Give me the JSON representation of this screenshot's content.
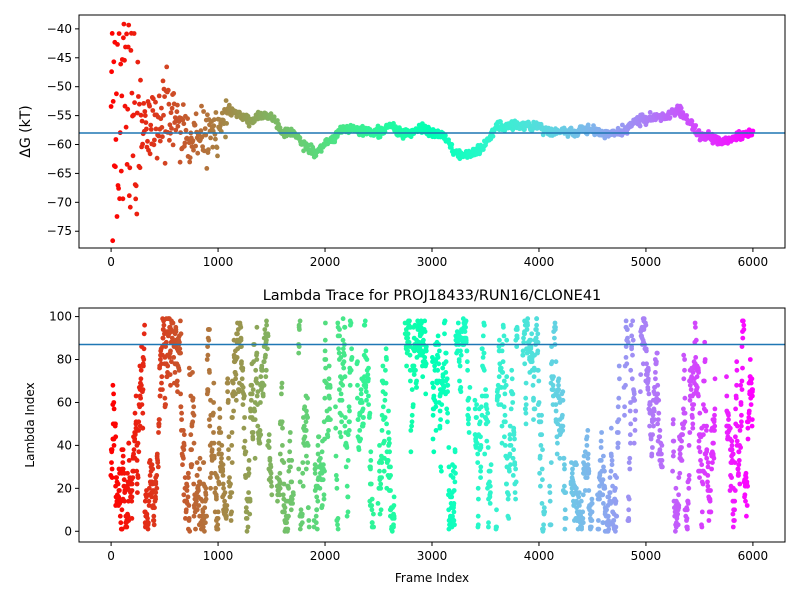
{
  "chart_data": [
    {
      "type": "scatter",
      "title": "",
      "xlabel": "",
      "ylabel": "ΔG (kT)",
      "xlim": [
        -300,
        6300
      ],
      "ylim": [
        -77.9,
        -37.6
      ],
      "xticks": [
        0,
        1000,
        2000,
        3000,
        4000,
        5000,
        6000
      ],
      "yticks": [
        -75,
        -70,
        -65,
        -60,
        -55,
        -50,
        -45,
        -40
      ],
      "hline": -58,
      "hline_color": "#1f77b4",
      "colormap": "rainbow (red at frame 0 → violet at frame 6000)",
      "n_frames": 6000,
      "trace_points": [
        [
          0,
          -52
        ],
        [
          30,
          -44
        ],
        [
          60,
          -60
        ],
        [
          100,
          -58
        ],
        [
          150,
          -63
        ],
        [
          200,
          -62
        ],
        [
          300,
          -58
        ],
        [
          400,
          -57
        ],
        [
          500,
          -56
        ],
        [
          600,
          -56
        ],
        [
          700,
          -58
        ],
        [
          800,
          -60
        ],
        [
          900,
          -59
        ],
        [
          1000,
          -58
        ],
        [
          1100,
          -53.5
        ],
        [
          1200,
          -55
        ],
        [
          1300,
          -56
        ],
        [
          1400,
          -55
        ],
        [
          1500,
          -55
        ],
        [
          1600,
          -58
        ],
        [
          1700,
          -58
        ],
        [
          1800,
          -60
        ],
        [
          1900,
          -61.5
        ],
        [
          2000,
          -60
        ],
        [
          2200,
          -57
        ],
        [
          2300,
          -57.5
        ],
        [
          2500,
          -58
        ],
        [
          2600,
          -56.5
        ],
        [
          2700,
          -58
        ],
        [
          2800,
          -58
        ],
        [
          2900,
          -57
        ],
        [
          3000,
          -58
        ],
        [
          3100,
          -58
        ],
        [
          3200,
          -61
        ],
        [
          3300,
          -61.8
        ],
        [
          3400,
          -61.5
        ],
        [
          3500,
          -60
        ],
        [
          3600,
          -57
        ],
        [
          3800,
          -56.5
        ],
        [
          4000,
          -57
        ],
        [
          4100,
          -58
        ],
        [
          4200,
          -57.5
        ],
        [
          4300,
          -58
        ],
        [
          4400,
          -57.5
        ],
        [
          4600,
          -58
        ],
        [
          4700,
          -58
        ],
        [
          4800,
          -57.5
        ],
        [
          4900,
          -56
        ],
        [
          5000,
          -55.5
        ],
        [
          5200,
          -55
        ],
        [
          5300,
          -54
        ],
        [
          5400,
          -56
        ],
        [
          5500,
          -58.5
        ],
        [
          5600,
          -58.5
        ],
        [
          5700,
          -59.5
        ],
        [
          5800,
          -59
        ],
        [
          6000,
          -58
        ]
      ],
      "early_spread": [
        [
          0,
          300,
          24
        ],
        [
          300,
          700,
          7
        ],
        [
          700,
          1000,
          5
        ],
        [
          1000,
          1100,
          3
        ],
        [
          1100,
          6000,
          0.8
        ]
      ]
    },
    {
      "type": "scatter",
      "title": "Lambda Trace for PROJ18433/RUN16/CLONE41",
      "xlabel": "Frame Index",
      "ylabel": "Lambda Index",
      "xlim": [
        -300,
        6300
      ],
      "ylim": [
        -5,
        104
      ],
      "xticks": [
        0,
        1000,
        2000,
        3000,
        4000,
        5000,
        6000
      ],
      "yticks": [
        0,
        20,
        40,
        60,
        80,
        100
      ],
      "hline": 87,
      "hline_color": "#1f77b4",
      "colormap": "rainbow (red at frame 0 → violet at frame 6000)",
      "n_frames": 6000,
      "lambda_range": [
        0,
        99
      ],
      "sampling_regime": "dense random walk over lambda 0–99, clustered in vertical bands",
      "bands": [
        [
          0,
          1400
        ],
        [
          1400,
          1500
        ],
        [
          1550,
          1700
        ],
        [
          1750,
          1850
        ],
        [
          1900,
          2050
        ],
        [
          2100,
          2250
        ],
        [
          2300,
          2450
        ],
        [
          2500,
          2650
        ],
        [
          2750,
          2950
        ],
        [
          3000,
          3350
        ],
        [
          3400,
          3550
        ],
        [
          3600,
          3800
        ],
        [
          3850,
          4050
        ],
        [
          4100,
          4250
        ],
        [
          4300,
          4500
        ],
        [
          4550,
          4750
        ],
        [
          4800,
          4900
        ],
        [
          4950,
          5150
        ],
        [
          5250,
          5650
        ],
        [
          5750,
          6000
        ]
      ]
    }
  ]
}
